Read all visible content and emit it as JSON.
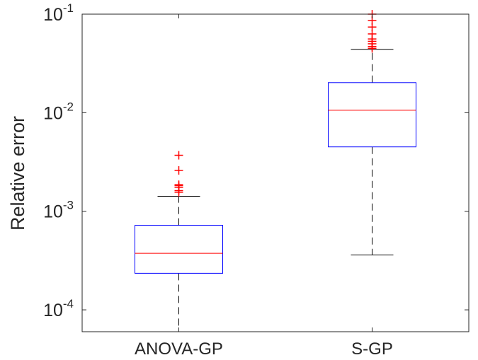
{
  "chart_data": {
    "type": "boxplot",
    "ylabel": "Relative error",
    "yscale": "log",
    "ylim": [
      6e-05,
      0.1
    ],
    "yticks": [
      {
        "value": 0.0001,
        "base": "10",
        "exp": "-4"
      },
      {
        "value": 0.001,
        "base": "10",
        "exp": "-3"
      },
      {
        "value": 0.01,
        "base": "10",
        "exp": "-2"
      },
      {
        "value": 0.1,
        "base": "10",
        "exp": "-1"
      }
    ],
    "categories": [
      "ANOVA-GP",
      "S-GP"
    ],
    "boxes": [
      {
        "label": "ANOVA-GP",
        "q1": 0.000235,
        "median": 0.000375,
        "q3": 0.00072,
        "whisker_low": 6e-05,
        "whisker_high": 0.00142,
        "outliers": [
          0.00156,
          0.00162,
          0.00175,
          0.00182,
          0.00186,
          0.0026,
          0.0037
        ]
      },
      {
        "label": "S-GP",
        "q1": 0.0045,
        "median": 0.0106,
        "q3": 0.0202,
        "whisker_low": 0.00036,
        "whisker_high": 0.044,
        "outliers": [
          0.045,
          0.047,
          0.05,
          0.053,
          0.056,
          0.063,
          0.074,
          0.086,
          0.1
        ]
      }
    ],
    "colors": {
      "box": "#0000ff",
      "median": "#ff0000",
      "whisker": "#000000",
      "outlier": "#ff0000"
    },
    "grid": false
  }
}
